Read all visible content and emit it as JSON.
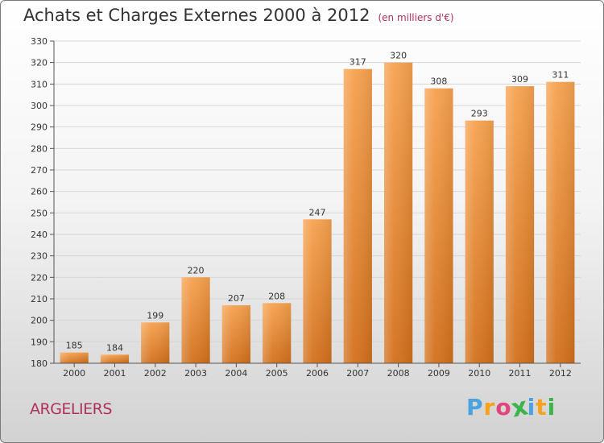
{
  "header": {
    "title": "Achats et Charges Externes 2000 à 2012",
    "unit": "(en milliers d'€)"
  },
  "footer": {
    "commune": "ARGELIERS",
    "logo_letters": [
      "P",
      "r",
      "o",
      "x",
      "i",
      "t",
      "i"
    ],
    "logo_colors": [
      "#4aa3df",
      "#f7a21b",
      "#e0457b",
      "#3cb44b",
      "#4aa3df",
      "#f7a21b",
      "#3cb44b"
    ]
  },
  "chart_data": {
    "type": "bar",
    "categories": [
      "2000",
      "2001",
      "2002",
      "2003",
      "2004",
      "2005",
      "2006",
      "2007",
      "2008",
      "2009",
      "2010",
      "2011",
      "2012"
    ],
    "values": [
      185,
      184,
      199,
      220,
      207,
      208,
      247,
      317,
      320,
      308,
      293,
      309,
      311
    ],
    "value_labels": [
      "185",
      "184",
      "199",
      "220",
      "207",
      "208",
      "247",
      "317",
      "320",
      "308",
      "293",
      "309",
      "311"
    ],
    "title": "Achats et Charges Externes 2000 à 2012",
    "unit": "(en milliers d'€)",
    "xlabel": "",
    "ylabel": "",
    "ylim": [
      180,
      330
    ],
    "yticks": [
      "180",
      "190",
      "200",
      "210",
      "220",
      "230",
      "240",
      "250",
      "260",
      "270",
      "280",
      "290",
      "300",
      "310",
      "320",
      "330"
    ],
    "grid": true,
    "bar_color_top": "#f7a24f",
    "bar_color_bottom": "#d2701c"
  }
}
